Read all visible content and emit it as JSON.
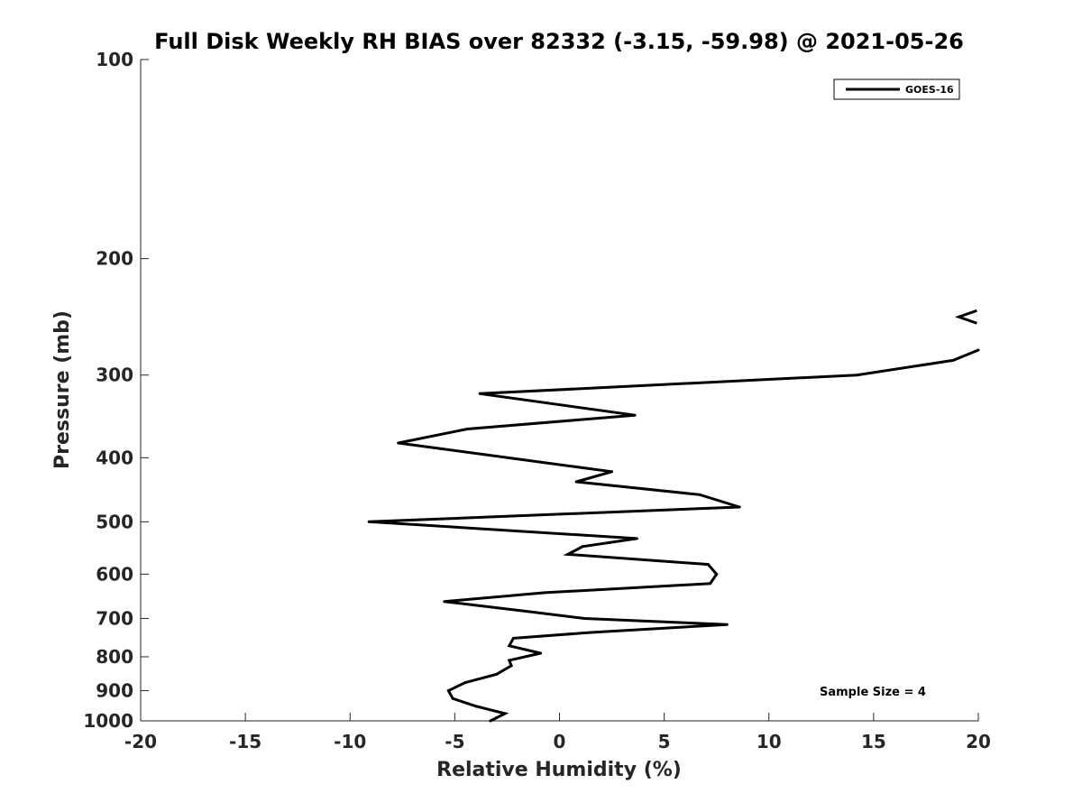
{
  "chart_data": {
    "type": "line",
    "title": "Full Disk Weekly RH BIAS over 82332 (-3.15, -59.98) @ 2021-05-26",
    "xlabel": "Relative Humidity (%)",
    "ylabel": "Pressure (mb)",
    "xlim": [
      -20,
      20
    ],
    "ylim": [
      1000,
      100
    ],
    "y_scale": "log",
    "y_reversed": true,
    "grid": false,
    "legend_position": "top-right",
    "x_ticks": [
      -20,
      -15,
      -10,
      -5,
      0,
      5,
      10,
      15,
      20
    ],
    "x_tick_labels": [
      "-20",
      "-15",
      "-10",
      "-5",
      "0",
      "5",
      "10",
      "15",
      "20"
    ],
    "y_ticks": [
      100,
      200,
      300,
      400,
      500,
      600,
      700,
      800,
      900,
      1000
    ],
    "y_tick_labels": [
      "100",
      "200",
      "300",
      "400",
      "500",
      "600",
      "700",
      "800",
      "900",
      "1000"
    ],
    "series": [
      {
        "name": "GOES-16",
        "color": "#000000",
        "points": [
          {
            "x": -3.3,
            "y": 1000
          },
          {
            "x": -2.6,
            "y": 975
          },
          {
            "x": -4.0,
            "y": 950
          },
          {
            "x": -5.1,
            "y": 925
          },
          {
            "x": -5.3,
            "y": 900
          },
          {
            "x": -4.5,
            "y": 875
          },
          {
            "x": -3.0,
            "y": 850
          },
          {
            "x": -2.3,
            "y": 825
          },
          {
            "x": -2.4,
            "y": 810
          },
          {
            "x": -0.9,
            "y": 790
          },
          {
            "x": -2.4,
            "y": 770
          },
          {
            "x": -2.2,
            "y": 750
          },
          {
            "x": 1.5,
            "y": 735
          },
          {
            "x": 8.0,
            "y": 715
          },
          {
            "x": 1.2,
            "y": 700
          },
          {
            "x": -1.2,
            "y": 685
          },
          {
            "x": -5.5,
            "y": 660
          },
          {
            "x": -0.7,
            "y": 640
          },
          {
            "x": 7.2,
            "y": 620
          },
          {
            "x": 7.5,
            "y": 600
          },
          {
            "x": 7.1,
            "y": 580
          },
          {
            "x": 0.4,
            "y": 560
          },
          {
            "x": 1.1,
            "y": 545
          },
          {
            "x": 3.7,
            "y": 530
          },
          {
            "x": -9.1,
            "y": 500
          },
          {
            "x": 8.6,
            "y": 475
          },
          {
            "x": 6.7,
            "y": 455
          },
          {
            "x": 0.8,
            "y": 435
          },
          {
            "x": 2.5,
            "y": 420
          },
          {
            "x": -7.7,
            "y": 380
          },
          {
            "x": -4.4,
            "y": 362
          },
          {
            "x": 3.6,
            "y": 345
          },
          {
            "x": -3.8,
            "y": 320
          },
          {
            "x": 14.2,
            "y": 300
          },
          {
            "x": 18.8,
            "y": 285
          },
          {
            "x": 20.0,
            "y": 275
          }
        ]
      }
    ],
    "annotations": [
      {
        "text": "Sample Size = 4",
        "position": "bottom-right"
      },
      {
        "text": "<",
        "x": 19.5,
        "y": 245,
        "meaning": "off-scale value marker"
      }
    ]
  }
}
